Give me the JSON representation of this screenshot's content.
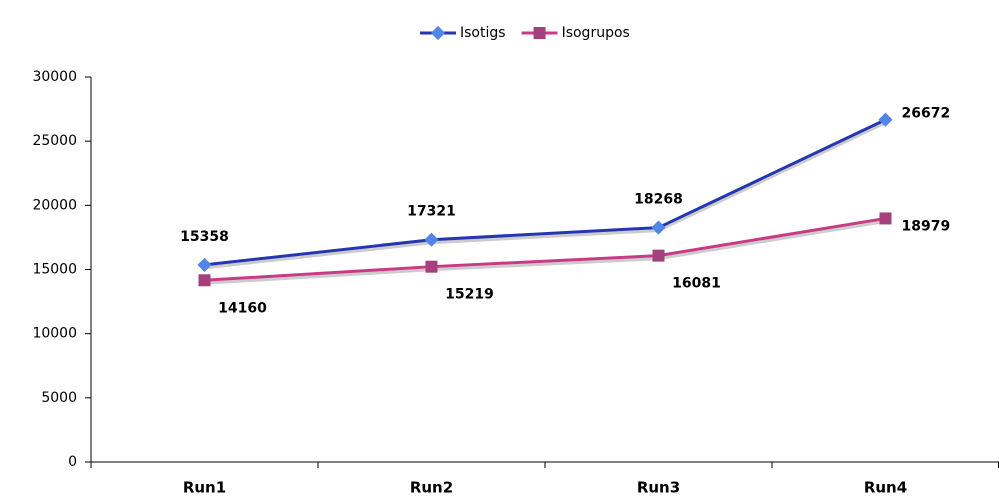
{
  "chart_data": {
    "type": "line",
    "categories": [
      "Run1",
      "Run2",
      "Run3",
      "Run4"
    ],
    "series": [
      {
        "name": "Isotigs",
        "color": "#2436b0",
        "values": [
          15358,
          17321,
          18268,
          26672
        ]
      },
      {
        "name": "Isogrupos",
        "color": "#c83a86",
        "values": [
          14160,
          15219,
          16081,
          18979
        ]
      }
    ],
    "ylim": [
      0,
      30000
    ],
    "yticks": [
      0,
      5000,
      10000,
      15000,
      20000,
      25000,
      30000
    ],
    "grid": false,
    "legend": "top"
  }
}
